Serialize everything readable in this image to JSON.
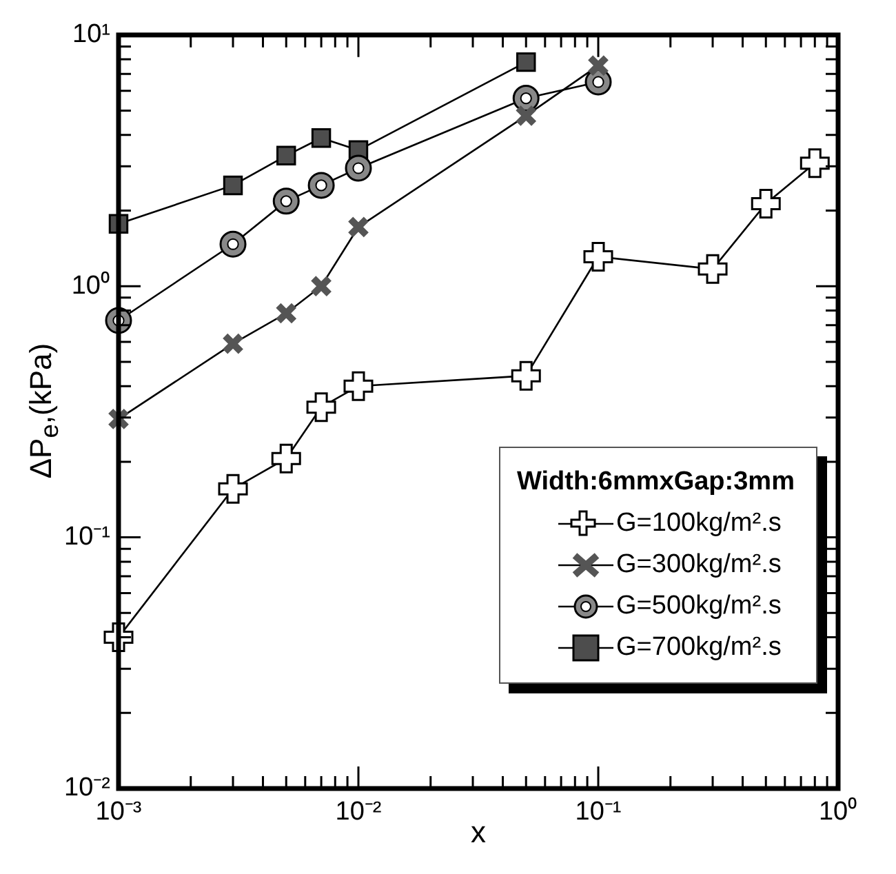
{
  "chart_data": {
    "type": "line",
    "xlabel": "x",
    "ylabel": "ΔP$_{e}$,(kPa)",
    "legend_title": "Width:6mmxGap:3mm",
    "legend": "bottom right",
    "log": "xy",
    "grid": false,
    "xlim": [
      0.001,
      1
    ],
    "ylim": [
      0.01,
      10
    ],
    "xticks": [
      {
        "value": 0.001,
        "label": "10⁻³"
      },
      {
        "value": 0.002,
        "label": null
      },
      {
        "value": 0.003,
        "label": null
      },
      {
        "value": 0.004,
        "label": null
      },
      {
        "value": 0.005,
        "label": null
      },
      {
        "value": 0.006,
        "label": null
      },
      {
        "value": 0.007,
        "label": null
      },
      {
        "value": 0.008,
        "label": null
      },
      {
        "value": 0.009,
        "label": null
      },
      {
        "value": 0.01,
        "label": "10⁻²"
      },
      {
        "value": 0.02,
        "label": null
      },
      {
        "value": 0.03,
        "label": null
      },
      {
        "value": 0.04,
        "label": null
      },
      {
        "value": 0.05,
        "label": null
      },
      {
        "value": 0.06,
        "label": null
      },
      {
        "value": 0.07,
        "label": null
      },
      {
        "value": 0.08,
        "label": null
      },
      {
        "value": 0.09,
        "label": null
      },
      {
        "value": 0.1,
        "label": "10⁻¹"
      },
      {
        "value": 0.2,
        "label": null
      },
      {
        "value": 0.3,
        "label": null
      },
      {
        "value": 0.4,
        "label": null
      },
      {
        "value": 0.5,
        "label": null
      },
      {
        "value": 0.6,
        "label": null
      },
      {
        "value": 0.7,
        "label": null
      },
      {
        "value": 0.8,
        "label": null
      },
      {
        "value": 0.9,
        "label": null
      },
      {
        "value": 1,
        "label": "10⁰"
      }
    ],
    "yticks": [
      {
        "value": 0.01,
        "label": "10⁻²"
      },
      {
        "value": 0.02,
        "label": null
      },
      {
        "value": 0.03,
        "label": null
      },
      {
        "value": 0.04,
        "label": null
      },
      {
        "value": 0.05,
        "label": null
      },
      {
        "value": 0.06,
        "label": null
      },
      {
        "value": 0.07,
        "label": null
      },
      {
        "value": 0.08,
        "label": null
      },
      {
        "value": 0.09,
        "label": null
      },
      {
        "value": 0.1,
        "label": "10⁻¹"
      },
      {
        "value": 0.2,
        "label": null
      },
      {
        "value": 0.3,
        "label": null
      },
      {
        "value": 0.4,
        "label": null
      },
      {
        "value": 0.5,
        "label": null
      },
      {
        "value": 0.6,
        "label": null
      },
      {
        "value": 0.7,
        "label": null
      },
      {
        "value": 0.8,
        "label": null
      },
      {
        "value": 0.9,
        "label": null
      },
      {
        "value": 1,
        "label": "10⁰"
      },
      {
        "value": 2,
        "label": null
      },
      {
        "value": 3,
        "label": null
      },
      {
        "value": 4,
        "label": null
      },
      {
        "value": 5,
        "label": null
      },
      {
        "value": 6,
        "label": null
      },
      {
        "value": 7,
        "label": null
      },
      {
        "value": 8,
        "label": null
      },
      {
        "value": 9,
        "label": null
      },
      {
        "value": 10,
        "label": "10¹"
      }
    ],
    "series": [
      {
        "name": "G=100kg/m².s",
        "color": "#ffffff",
        "marker": "plus",
        "line_style": "solid",
        "x": [
          0.001,
          0.003,
          0.005,
          0.007,
          0.01,
          0.05,
          0.1,
          0.3,
          0.5,
          0.8
        ],
        "values": [
          0.04,
          0.156,
          0.206,
          0.33,
          0.4,
          0.44,
          1.31,
          1.17,
          2.13,
          3.09
        ]
      },
      {
        "name": "G=300kg/m².s",
        "color": "#555555",
        "marker": "cross",
        "line_style": "solid",
        "x": [
          0.001,
          0.003,
          0.005,
          0.007,
          0.01,
          0.05,
          0.1
        ],
        "values": [
          0.296,
          0.59,
          0.78,
          1.0,
          1.72,
          4.77,
          7.56
        ]
      },
      {
        "name": "G=500kg/m².s",
        "color": "#888888",
        "marker": "circle",
        "line_style": "solid",
        "x": [
          0.001,
          0.003,
          0.005,
          0.007,
          0.01,
          0.05,
          0.1
        ],
        "values": [
          0.73,
          1.47,
          2.18,
          2.52,
          2.95,
          5.6,
          6.5
        ]
      },
      {
        "name": "G=700kg/m².s",
        "color": "#4d4d4d",
        "marker": "square",
        "line_style": "solid",
        "x": [
          0.001,
          0.003,
          0.005,
          0.007,
          0.01,
          0.05
        ],
        "values": [
          1.77,
          2.52,
          3.31,
          3.89,
          3.48,
          7.8
        ]
      }
    ]
  }
}
